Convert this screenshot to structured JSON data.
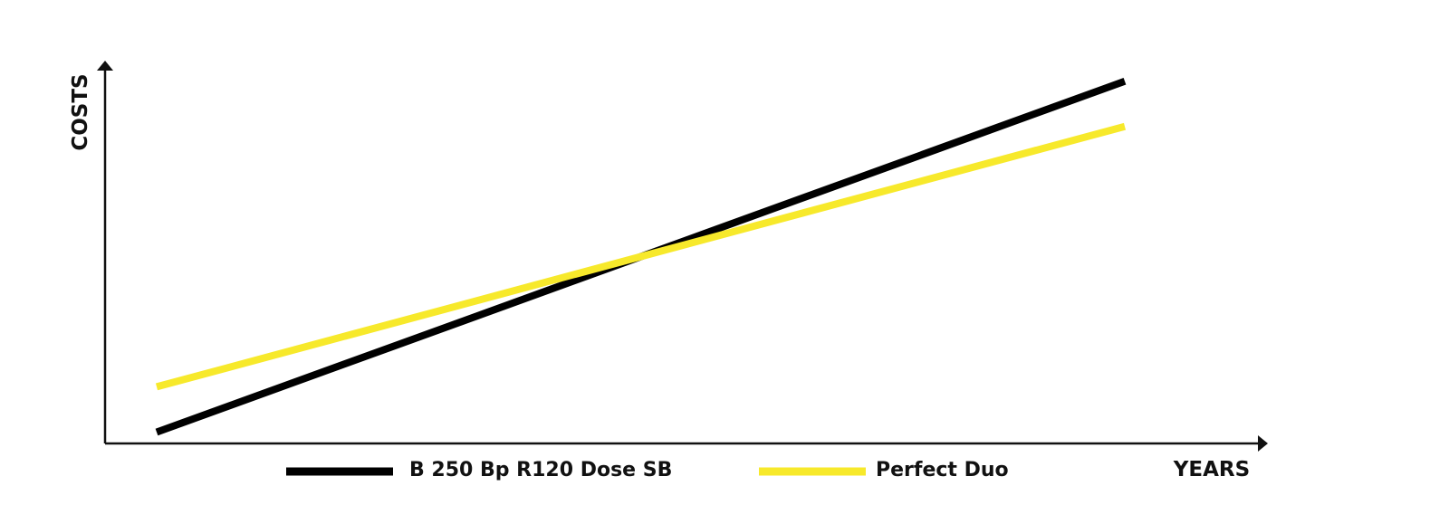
{
  "chart_data": {
    "type": "line",
    "title": "",
    "xlabel": "YEARS",
    "ylabel": "COSTS",
    "xlim": [
      0,
      1
    ],
    "ylim": [
      0,
      1
    ],
    "grid": false,
    "legend_position": "bottom",
    "series": [
      {
        "name": "B 250 Bp R120 Dose SB",
        "color": "#000000",
        "x": [
          0,
          1
        ],
        "y": [
          0.03,
          0.96
        ]
      },
      {
        "name": "Perfect Duo",
        "color": "#f7e92b",
        "x": [
          0,
          1
        ],
        "y": [
          0.15,
          0.84
        ]
      }
    ]
  }
}
